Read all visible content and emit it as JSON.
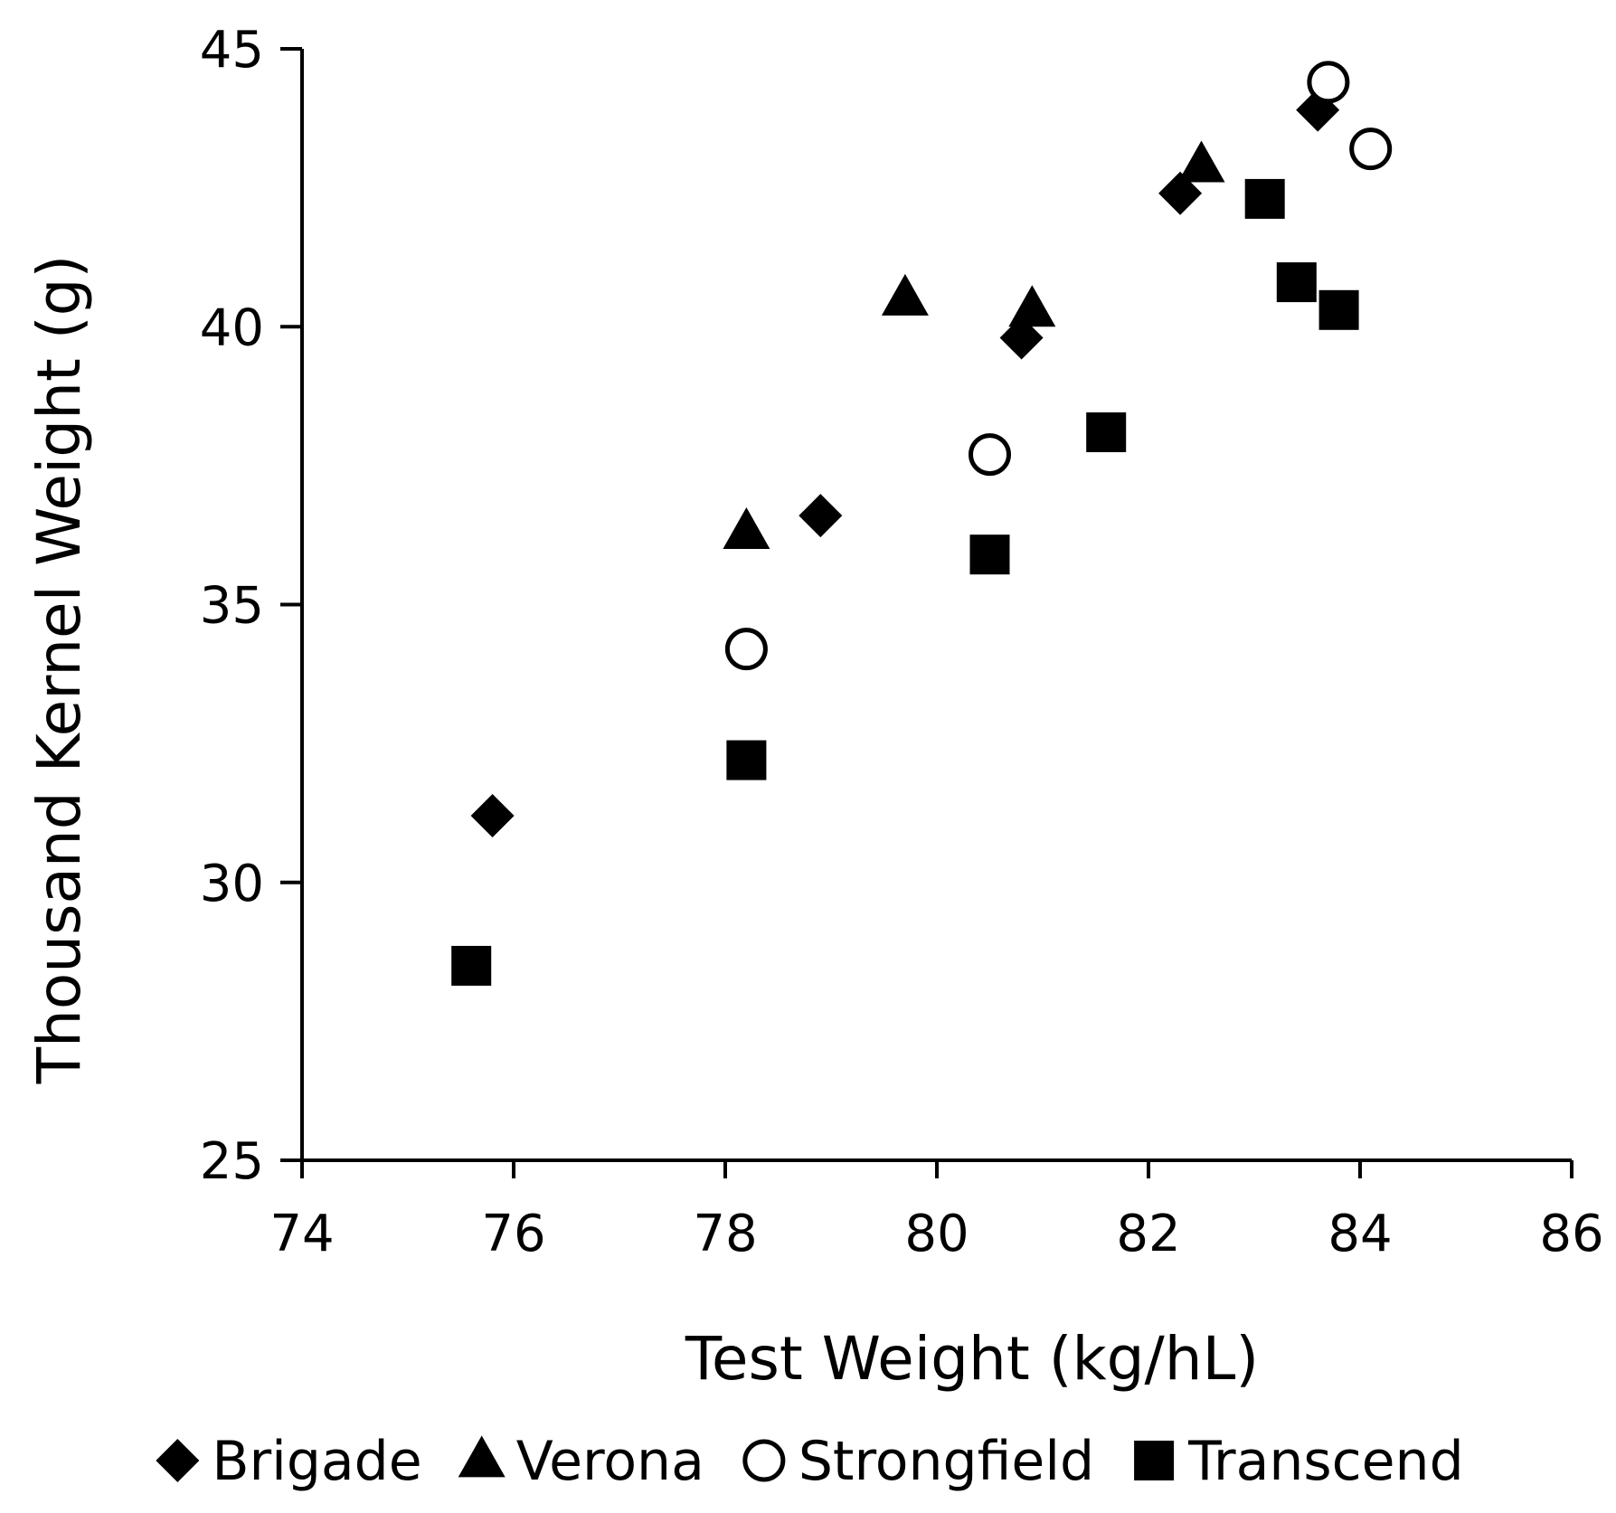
{
  "chart_data": {
    "type": "scatter",
    "title": "",
    "xlabel": "Test Weight (kg/hL)",
    "ylabel": "Thousand Kernel Weight  (g)",
    "xlim": [
      74,
      86
    ],
    "ylim": [
      25,
      45
    ],
    "xticks": [
      74,
      76,
      78,
      80,
      82,
      84,
      86
    ],
    "yticks": [
      25,
      30,
      35,
      40,
      45
    ],
    "xtick_labels": [
      "74",
      "76",
      "78",
      "80",
      "82",
      "84",
      "86"
    ],
    "ytick_labels": [
      "25",
      "30",
      "35",
      "40",
      "45"
    ],
    "grid": false,
    "legend_position": "bottom",
    "series": [
      {
        "name": "Brigade",
        "marker": "diamond",
        "fill": "#000000",
        "points": [
          [
            75.8,
            31.2
          ],
          [
            78.9,
            36.6
          ],
          [
            80.8,
            39.8
          ],
          [
            82.3,
            42.4
          ],
          [
            83.6,
            43.9
          ]
        ]
      },
      {
        "name": "Verona",
        "marker": "triangle",
        "fill": "#000000",
        "points": [
          [
            78.2,
            36.3
          ],
          [
            79.7,
            40.5
          ],
          [
            80.9,
            40.3
          ],
          [
            82.5,
            42.9
          ]
        ]
      },
      {
        "name": "Strongfield",
        "marker": "circle-open",
        "fill": "#ffffff",
        "points": [
          [
            78.2,
            34.2
          ],
          [
            80.5,
            37.7
          ],
          [
            83.7,
            44.4
          ],
          [
            84.1,
            43.2
          ]
        ]
      },
      {
        "name": "Transcend",
        "marker": "square",
        "fill": "#000000",
        "points": [
          [
            75.6,
            28.5
          ],
          [
            78.2,
            32.2
          ],
          [
            80.5,
            35.9
          ],
          [
            81.6,
            38.1
          ],
          [
            83.1,
            42.3
          ],
          [
            83.4,
            40.8
          ],
          [
            83.8,
            40.3
          ]
        ]
      }
    ]
  }
}
